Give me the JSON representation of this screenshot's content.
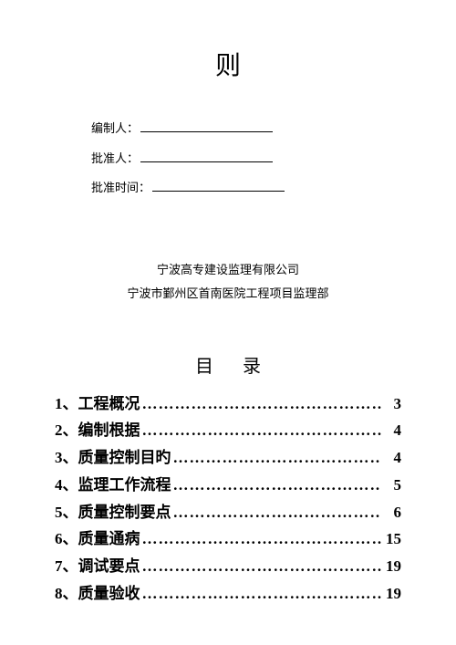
{
  "title": "则",
  "signatures": [
    {
      "label": "编制人："
    },
    {
      "label": "批准人："
    },
    {
      "label": "批准时间："
    }
  ],
  "company": {
    "line1": "宁波高专建设监理有限公司",
    "line2": "宁波市鄞州区首南医院工程项目监理部"
  },
  "toc_title": "目录",
  "toc": [
    {
      "num": "1、",
      "label": "工程概况",
      "page": "3"
    },
    {
      "num": "2、",
      "label": "编制根据",
      "page": "4"
    },
    {
      "num": "3、",
      "label": "质量控制目旳",
      "page": "4"
    },
    {
      "num": "4、",
      "label": "监理工作流程",
      "page": "5"
    },
    {
      "num": "5、",
      "label": "质量控制要点",
      "page": "6"
    },
    {
      "num": "6、",
      "label": "质量通病",
      "page": "15"
    },
    {
      "num": "7、",
      "label": "调试要点",
      "page": "19"
    },
    {
      "num": "8、",
      "label": "质量验收",
      "page": "19"
    }
  ],
  "dots": "……………………………………………"
}
